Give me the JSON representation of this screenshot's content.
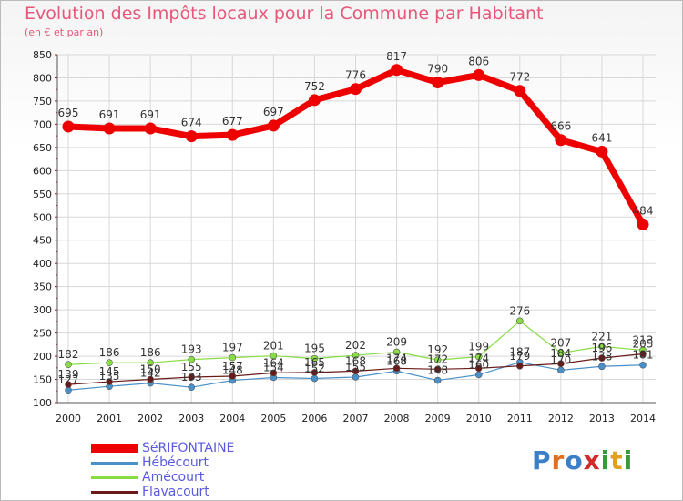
{
  "title": "Evolution des Impôts locaux pour la Commune par Habitant",
  "subtitle": "(en € et par an)",
  "logo": {
    "text": "Proxiti",
    "colors": [
      "#3a7fc8",
      "#e07020",
      "#3a7fc8",
      "#d12a2a",
      "#3a9a3a",
      "#e0a020",
      "#3a9a3a"
    ]
  },
  "chart_data": {
    "type": "line",
    "title": "Evolution des Impôts locaux pour la Commune par Habitant",
    "ylabel": "(en € et par an)",
    "ylim": [
      100,
      850
    ],
    "yticks": [
      100,
      150,
      200,
      250,
      300,
      350,
      400,
      450,
      500,
      550,
      600,
      650,
      700,
      750,
      800,
      850
    ],
    "x": [
      "2000",
      "2001",
      "2002",
      "2003",
      "2004",
      "2005",
      "2006",
      "2007",
      "2008",
      "2009",
      "2010",
      "2011",
      "2012",
      "2013",
      "2014"
    ],
    "series": [
      {
        "name": "SéRIFONTAINE",
        "color": "#ee0000",
        "values": [
          695,
          691,
          691,
          674,
          677,
          697,
          752,
          776,
          817,
          790,
          806,
          772,
          666,
          641,
          484
        ]
      },
      {
        "name": "Hébécourt",
        "color": "#4a90c8",
        "values": [
          127,
          135,
          142,
          133,
          148,
          154,
          152,
          155,
          168,
          148,
          160,
          187,
          170,
          178,
          181
        ]
      },
      {
        "name": "Amécourt",
        "color": "#88dd44",
        "values": [
          182,
          186,
          186,
          193,
          197,
          201,
          195,
          202,
          209,
          192,
          199,
          276,
          207,
          221,
          213
        ]
      },
      {
        "name": "Flavacourt",
        "color": "#6b1a1a",
        "values": [
          139,
          145,
          150,
          155,
          157,
          164,
          165,
          168,
          174,
          172,
          174,
          179,
          184,
          196,
          205
        ]
      }
    ],
    "labels": [
      [
        "695",
        "691",
        "691",
        "674",
        "677",
        "697",
        "752",
        "776",
        "817",
        "790",
        "806",
        "772",
        "666",
        "641",
        "484"
      ],
      [
        "127",
        "135",
        "142",
        "133",
        "148",
        "154",
        "152",
        "155",
        "168",
        "148",
        "160",
        "187",
        "170",
        "178",
        "181"
      ],
      [
        "182",
        "186",
        "186",
        "193",
        "197",
        "201",
        "195",
        "202",
        "209",
        "192",
        "199",
        "276",
        "207",
        "221",
        "213"
      ],
      [
        "139",
        "145",
        "150",
        "155",
        "157",
        "164",
        "165",
        "168",
        "174",
        "172",
        "174",
        "179",
        "184",
        "196",
        "205"
      ]
    ]
  }
}
